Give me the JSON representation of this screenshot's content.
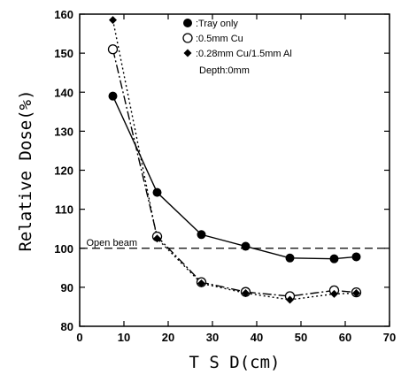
{
  "chart_data": {
    "type": "line",
    "xlabel": "T S D(cm)",
    "ylabel": "Relative Dose(%)",
    "xlim": [
      0,
      70
    ],
    "ylim": [
      80,
      160
    ],
    "xticks": [
      0,
      10,
      20,
      30,
      40,
      50,
      60,
      70
    ],
    "yticks": [
      80,
      90,
      100,
      110,
      120,
      130,
      140,
      150,
      160
    ],
    "grid": false,
    "legend_position": "top-right",
    "series": [
      {
        "name": ":Tray   only",
        "marker": "filled-circle",
        "line": "solid",
        "x": [
          7.5,
          17.5,
          27.5,
          37.5,
          47.5,
          57.5,
          62.5
        ],
        "y": [
          139.0,
          114.3,
          103.5,
          100.5,
          97.5,
          97.3,
          97.8
        ]
      },
      {
        "name": ":0.5mm Cu",
        "marker": "open-circle",
        "line": "dashed",
        "x": [
          7.5,
          17.5,
          27.5,
          37.5,
          47.5,
          57.5,
          62.5
        ],
        "y": [
          151.0,
          103.0,
          91.3,
          88.8,
          87.7,
          89.2,
          88.7
        ]
      },
      {
        "name": ":0.28mm Cu/1.5mm Al",
        "marker": "filled-diamond",
        "line": "dotted",
        "x": [
          7.5,
          17.5,
          27.5,
          37.5,
          47.5,
          57.5,
          62.5
        ],
        "y": [
          158.5,
          102.5,
          91.0,
          88.5,
          86.8,
          88.3,
          88.5
        ]
      }
    ],
    "legend_note": "Depth:0mm",
    "reference_line": {
      "label": "Open beam",
      "y": 100
    }
  }
}
